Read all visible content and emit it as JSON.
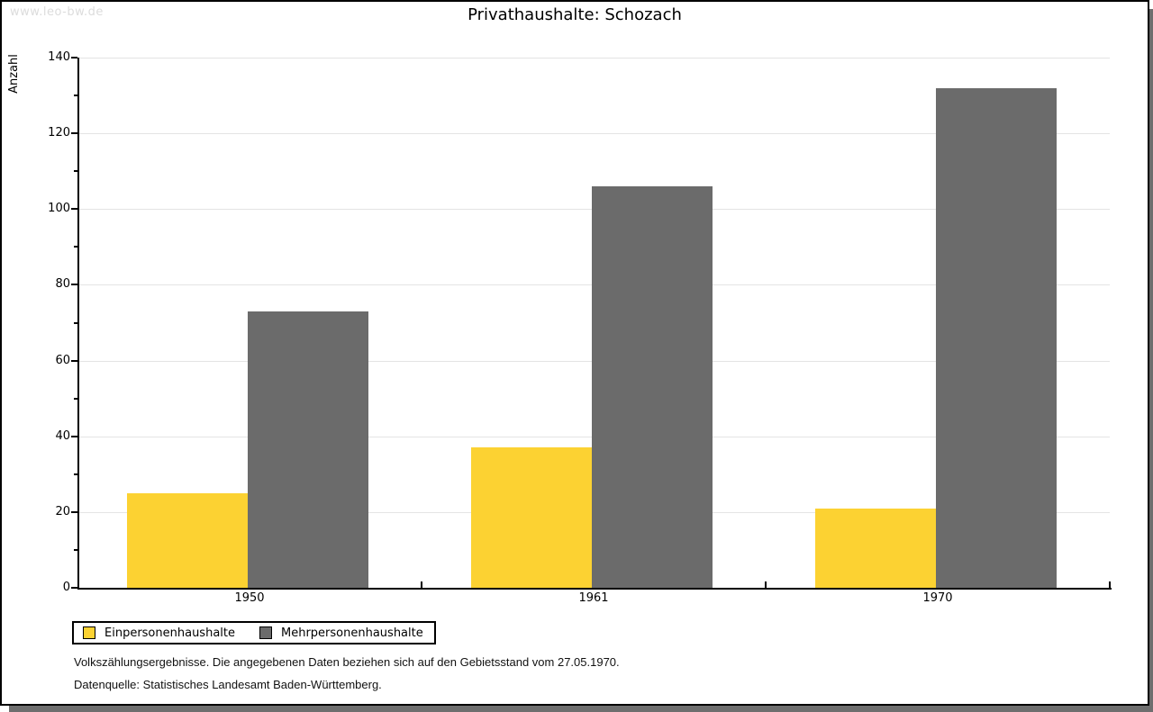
{
  "watermark": "www.leo-bw.de",
  "title": "Privathaushalte: Schozach",
  "chart_data": {
    "type": "bar",
    "title": "Privathaushalte: Schozach",
    "categories": [
      "1950",
      "1961",
      "1970"
    ],
    "series": [
      {
        "name": "Einpersonenhaushalte",
        "color": "#fcd232",
        "values": [
          25,
          37,
          21
        ]
      },
      {
        "name": "Mehrpersonenhaushalte",
        "color": "#6b6b6b",
        "values": [
          73,
          106,
          132
        ]
      }
    ],
    "xlabel": "",
    "ylabel": "Anzahl",
    "ylim": [
      0,
      140
    ],
    "ytick_step": 20,
    "yminor_step": 10,
    "grid": true,
    "gridline_color": "#e4e4e4",
    "legend_position": "bottom-left"
  },
  "footer": {
    "line1": "Volkszählungsergebnisse. Die angegebenen Daten beziehen sich auf den Gebietsstand vom 27.05.1970.",
    "line2": "Datenquelle: Statistisches Landesamt Baden-Württemberg."
  }
}
